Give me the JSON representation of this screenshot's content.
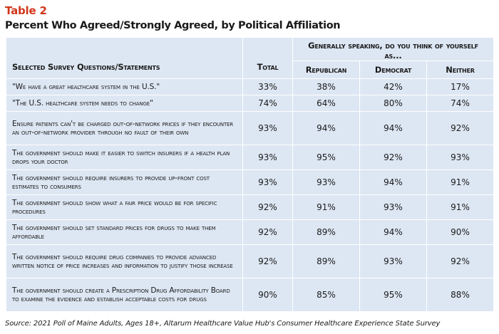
{
  "header": {
    "table_label": "Table 2",
    "title": "Percent Who Agreed/Strongly Agreed, by Political Affiliation"
  },
  "table": {
    "question_header": "Selected Survey Questions/Statements",
    "total_header": "Total",
    "group_header": "Generally speaking, do you think of yourself as...",
    "party_headers": [
      "Republican",
      "Democrat",
      "Neither"
    ],
    "rows": [
      {
        "statement": "\"We have a great healthcare system in the U.S.\"",
        "total": "33%",
        "republican": "38%",
        "democrat": "42%",
        "neither": "17%"
      },
      {
        "statement": "\"The U.S. healthcare system needs to change\"",
        "total": "74%",
        "republican": "64%",
        "democrat": "80%",
        "neither": "74%"
      },
      {
        "statement": "Ensure patients can't be charged out-of-network prices if they encounter an out-of-network provider through no fault of their own",
        "total": "93%",
        "republican": "94%",
        "democrat": "94%",
        "neither": "92%"
      },
      {
        "statement": "The government should make it easier to switch insurers if a health plan drops your doctor",
        "total": "93%",
        "republican": "95%",
        "democrat": "92%",
        "neither": "93%"
      },
      {
        "statement": "The government should require insurers to provide up-front cost estimates to consumers",
        "total": "93%",
        "republican": "93%",
        "democrat": "94%",
        "neither": "91%"
      },
      {
        "statement": "The government should show what a fair price would be for specific procedures",
        "total": "92%",
        "republican": "91%",
        "democrat": "93%",
        "neither": "91%"
      },
      {
        "statement": "The government should set standard prices for drugs to make them affordable",
        "total": "92%",
        "republican": "89%",
        "democrat": "94%",
        "neither": "90%"
      },
      {
        "statement": "The government should require drug companies to provide advanced written notice of price increases and information to justify those increase",
        "total": "92%",
        "republican": "89%",
        "democrat": "93%",
        "neither": "92%"
      },
      {
        "statement": "The government should create a Prescription Drug Affordability Board to examine the evidence and establish acceptable costs for drugs",
        "total": "90%",
        "republican": "85%",
        "democrat": "95%",
        "neither": "88%"
      }
    ]
  },
  "footer": {
    "source": "Source: 2021 Poll of Maine Adults, Ages 18+, Altarum Healthcare Value Hub's Consumer Healthcare Experience State Survey"
  },
  "colors": {
    "accent": "#d1361b",
    "cell_background": "#dde7f3",
    "grid": "#ffffff"
  }
}
